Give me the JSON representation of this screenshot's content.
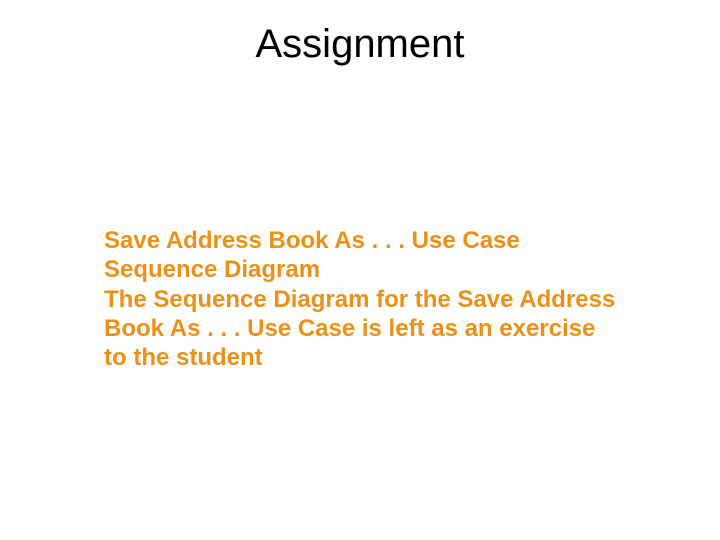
{
  "slide": {
    "title": "Assignment",
    "body": "Save Address Book As . . . Use Case Sequence Diagram\nThe Sequence Diagram for the Save Address Book As . . . Use Case is left as an exercise to the student",
    "title_color": "#000000",
    "body_color": "#ed9017",
    "background_color": "#ffffff",
    "title_fontsize": 40,
    "body_fontsize": 24,
    "body_fontweight": 700
  }
}
